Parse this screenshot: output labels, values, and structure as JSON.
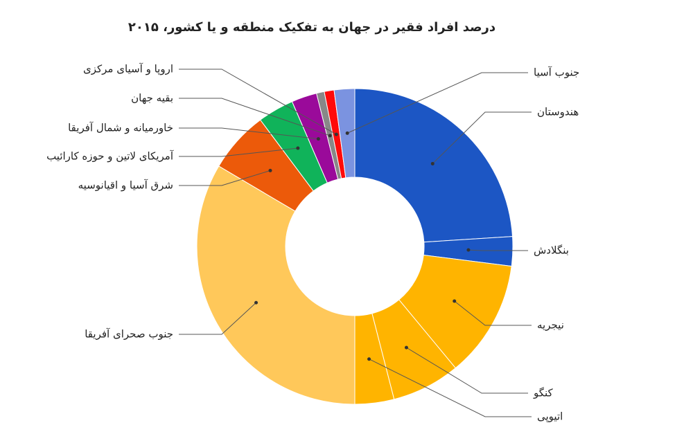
{
  "chart_data": {
    "type": "donut",
    "title": "درصد افراد فقیر در جهان به تفکیک منطقه و یا کشور، ۲۰۱۵",
    "categories": [
      "هندوستان",
      "بنگلادش",
      "نیجریه",
      "کنگو",
      "اتیوپی",
      "جنوب صحرای آفریقا",
      "شرق آسیا و اقیانوسیه",
      "آمریکای لاتین و حوزه کارائیب",
      "خاورمیانه و شمال آفریقا",
      "بقیه جهان",
      "اروپا و آسیای مرکزی",
      "جنوب آسیا"
    ],
    "values": [
      24,
      3,
      12,
      7,
      4,
      33.5,
      6.3,
      3.7,
      2.6,
      0.8,
      1,
      2.1
    ],
    "colors": [
      "#1c56c4",
      "#1c56c4",
      "#ffb400",
      "#ffb400",
      "#ffb400",
      "#ffc85a",
      "#ec5a0a",
      "#10b35a",
      "#9a0a9a",
      "#888888",
      "#ff0a0a",
      "#7b93e0"
    ]
  }
}
